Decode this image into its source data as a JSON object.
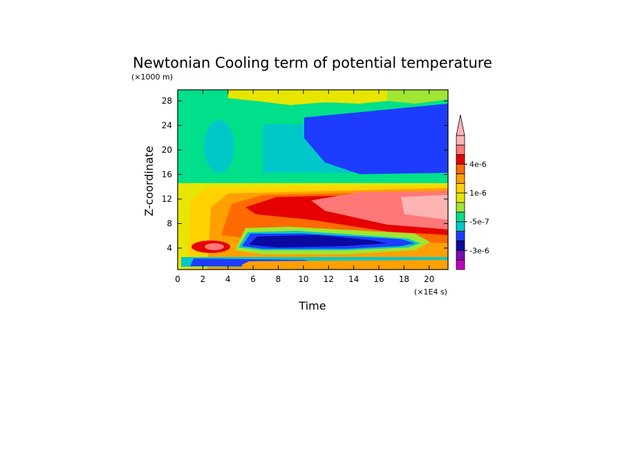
{
  "chart_data": {
    "type": "heatmap",
    "title": "Newtonian Cooling term of potential temperature",
    "ylabel": "Z-coordinate",
    "xlabel": "Time",
    "y_unit": "(×1000 m)",
    "x_unit": "(×1E4 s)",
    "x_range": [
      0,
      21.5
    ],
    "y_range": [
      0.5,
      29.8
    ],
    "x_ticks": [
      "0",
      "2",
      "4",
      "6",
      "8",
      "10",
      "12",
      "14",
      "16",
      "18",
      "20"
    ],
    "y_ticks": [
      "4",
      "8",
      "12",
      "16",
      "20",
      "24",
      "28"
    ],
    "colorbar": {
      "colors": [
        "#c000c0",
        "#7b0bb5",
        "#0a0aa0",
        "#1e3cff",
        "#00c8c8",
        "#00e08a",
        "#a0e632",
        "#e6e600",
        "#ffd200",
        "#ffa000",
        "#ff6a00",
        "#e60000",
        "#ff7878",
        "#ffb4b4"
      ],
      "labels": [
        "4e-6",
        "1e-6",
        "-5e-7",
        "-3e-6"
      ]
    }
  }
}
